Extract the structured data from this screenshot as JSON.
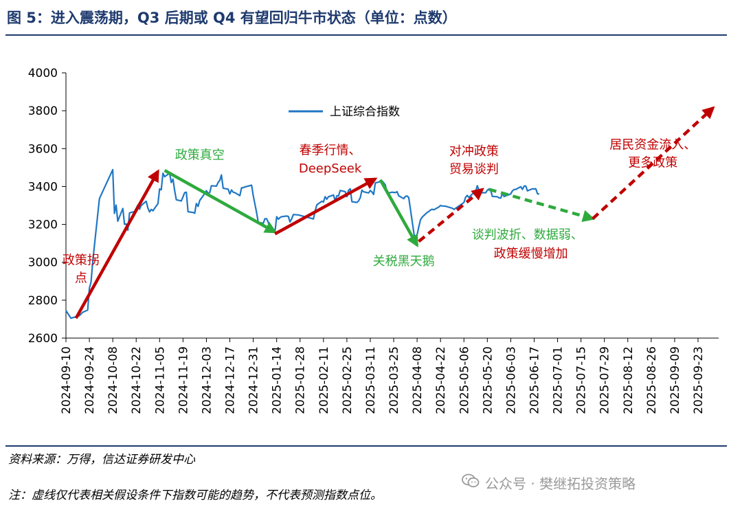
{
  "header": {
    "title": "图 5：进入震荡期，Q3 后期或 Q4 有望回归牛市状态（单位：点数）"
  },
  "footer": {
    "source": "资料来源：万得，信达证券研发中心",
    "note": "注：虚线仅代表相关假设条件下指数可能的趋势，不代表预测指数点位。",
    "watermark": "公众号 · 樊继拓投资策略",
    "watermark_icon": "wechat-icon"
  },
  "chart_data": {
    "type": "line",
    "title": "",
    "xlabel": "",
    "ylabel": "",
    "ylim": [
      2600,
      4000
    ],
    "yticks": [
      2600,
      2800,
      3000,
      3200,
      3400,
      3600,
      3800,
      4000
    ],
    "x_tick_labels": [
      "2024-09-10",
      "2024-09-24",
      "2024-10-08",
      "2024-10-22",
      "2024-11-05",
      "2024-11-19",
      "2024-12-03",
      "2024-12-17",
      "2024-12-31",
      "2025-01-14",
      "2025-01-28",
      "2025-02-11",
      "2025-02-25",
      "2025-03-11",
      "2025-03-25",
      "2025-04-08",
      "2025-04-22",
      "2025-05-06",
      "2025-05-20",
      "2025-06-03",
      "2025-06-17",
      "2025-07-01",
      "2025-07-15",
      "2025-07-29",
      "2025-08-12",
      "2025-08-26",
      "2025-09-09",
      "2025-09-23"
    ],
    "legend": {
      "label": "上证综合指数",
      "color": "#1f77c4",
      "position": "top-center"
    },
    "series": [
      {
        "name": "上证综合指数",
        "color": "#1f77c4",
        "points": [
          [
            "2024-09-10",
            2745
          ],
          [
            "2024-09-12",
            2718
          ],
          [
            "2024-09-13",
            2705
          ],
          [
            "2024-09-18",
            2718
          ],
          [
            "2024-09-20",
            2736
          ],
          [
            "2024-09-23",
            2748
          ],
          [
            "2024-09-24",
            2863
          ],
          [
            "2024-09-25",
            2896
          ],
          [
            "2024-09-26",
            3000
          ],
          [
            "2024-09-27",
            3087
          ],
          [
            "2024-09-30",
            3336
          ],
          [
            "2024-10-08",
            3489
          ],
          [
            "2024-10-09",
            3258
          ],
          [
            "2024-10-10",
            3302
          ],
          [
            "2024-10-11",
            3217
          ],
          [
            "2024-10-14",
            3284
          ],
          [
            "2024-10-15",
            3201
          ],
          [
            "2024-10-16",
            3202
          ],
          [
            "2024-10-17",
            3169
          ],
          [
            "2024-10-18",
            3261
          ],
          [
            "2024-10-21",
            3268
          ],
          [
            "2024-10-22",
            3285
          ],
          [
            "2024-10-23",
            3302
          ],
          [
            "2024-10-24",
            3280
          ],
          [
            "2024-10-25",
            3300
          ],
          [
            "2024-10-28",
            3322
          ],
          [
            "2024-10-29",
            3286
          ],
          [
            "2024-10-30",
            3266
          ],
          [
            "2024-10-31",
            3279
          ],
          [
            "2024-11-01",
            3272
          ],
          [
            "2024-11-04",
            3310
          ],
          [
            "2024-11-05",
            3387
          ],
          [
            "2024-11-06",
            3383
          ],
          [
            "2024-11-07",
            3470
          ],
          [
            "2024-11-08",
            3452
          ],
          [
            "2024-11-11",
            3470
          ],
          [
            "2024-11-12",
            3421
          ],
          [
            "2024-11-13",
            3439
          ],
          [
            "2024-11-14",
            3379
          ],
          [
            "2024-11-15",
            3330
          ],
          [
            "2024-11-18",
            3324
          ],
          [
            "2024-11-19",
            3346
          ],
          [
            "2024-11-20",
            3368
          ],
          [
            "2024-11-21",
            3370
          ],
          [
            "2024-11-22",
            3267
          ],
          [
            "2024-11-25",
            3263
          ],
          [
            "2024-11-26",
            3259
          ],
          [
            "2024-11-27",
            3310
          ],
          [
            "2024-11-28",
            3295
          ],
          [
            "2024-11-29",
            3326
          ],
          [
            "2024-12-02",
            3363
          ],
          [
            "2024-12-03",
            3378
          ],
          [
            "2024-12-04",
            3364
          ],
          [
            "2024-12-05",
            3368
          ],
          [
            "2024-12-06",
            3404
          ],
          [
            "2024-12-09",
            3402
          ],
          [
            "2024-12-10",
            3422
          ],
          [
            "2024-12-11",
            3432
          ],
          [
            "2024-12-12",
            3461
          ],
          [
            "2024-12-13",
            3391
          ],
          [
            "2024-12-16",
            3386
          ],
          [
            "2024-12-17",
            3361
          ],
          [
            "2024-12-18",
            3382
          ],
          [
            "2024-12-19",
            3370
          ],
          [
            "2024-12-20",
            3368
          ],
          [
            "2024-12-23",
            3352
          ],
          [
            "2024-12-24",
            3393
          ],
          [
            "2024-12-25",
            3394
          ],
          [
            "2024-12-26",
            3398
          ],
          [
            "2024-12-27",
            3400
          ],
          [
            "2024-12-30",
            3407
          ],
          [
            "2024-12-31",
            3352
          ],
          [
            "2025-01-02",
            3262
          ],
          [
            "2025-01-03",
            3211
          ],
          [
            "2025-01-06",
            3206
          ],
          [
            "2025-01-07",
            3230
          ],
          [
            "2025-01-08",
            3230
          ],
          [
            "2025-01-09",
            3211
          ],
          [
            "2025-01-10",
            3169
          ],
          [
            "2025-01-13",
            3160
          ],
          [
            "2025-01-14",
            3241
          ],
          [
            "2025-01-15",
            3227
          ],
          [
            "2025-01-16",
            3236
          ],
          [
            "2025-01-17",
            3241
          ],
          [
            "2025-01-20",
            3244
          ],
          [
            "2025-01-21",
            3242
          ],
          [
            "2025-01-22",
            3213
          ],
          [
            "2025-01-23",
            3230
          ],
          [
            "2025-01-24",
            3252
          ],
          [
            "2025-01-27",
            3250
          ],
          [
            "2025-02-05",
            3229
          ],
          [
            "2025-02-06",
            3270
          ],
          [
            "2025-02-07",
            3303
          ],
          [
            "2025-02-10",
            3322
          ],
          [
            "2025-02-11",
            3318
          ],
          [
            "2025-02-12",
            3346
          ],
          [
            "2025-02-13",
            3333
          ],
          [
            "2025-02-14",
            3346
          ],
          [
            "2025-02-17",
            3355
          ],
          [
            "2025-02-18",
            3324
          ],
          [
            "2025-02-19",
            3351
          ],
          [
            "2025-02-20",
            3350
          ],
          [
            "2025-02-21",
            3379
          ],
          [
            "2025-02-24",
            3373
          ],
          [
            "2025-02-25",
            3346
          ],
          [
            "2025-02-26",
            3380
          ],
          [
            "2025-02-27",
            3388
          ],
          [
            "2025-02-28",
            3320
          ],
          [
            "2025-03-03",
            3316
          ],
          [
            "2025-03-04",
            3324
          ],
          [
            "2025-03-05",
            3341
          ],
          [
            "2025-03-06",
            3381
          ],
          [
            "2025-03-07",
            3372
          ],
          [
            "2025-03-10",
            3366
          ],
          [
            "2025-03-11",
            3379
          ],
          [
            "2025-03-12",
            3371
          ],
          [
            "2025-03-13",
            3358
          ],
          [
            "2025-03-14",
            3419
          ],
          [
            "2025-03-17",
            3426
          ],
          [
            "2025-03-18",
            3429
          ],
          [
            "2025-03-19",
            3420
          ],
          [
            "2025-03-20",
            3408
          ],
          [
            "2025-03-21",
            3364
          ],
          [
            "2025-03-24",
            3370
          ],
          [
            "2025-03-25",
            3369
          ],
          [
            "2025-03-26",
            3368
          ],
          [
            "2025-03-27",
            3373
          ],
          [
            "2025-03-28",
            3351
          ],
          [
            "2025-03-31",
            3336
          ],
          [
            "2025-04-01",
            3348
          ],
          [
            "2025-04-02",
            3350
          ],
          [
            "2025-04-03",
            3342
          ],
          [
            "2025-04-07",
            3097
          ],
          [
            "2025-04-08",
            3145
          ],
          [
            "2025-04-09",
            3186
          ],
          [
            "2025-04-10",
            3224
          ],
          [
            "2025-04-11",
            3238
          ],
          [
            "2025-04-14",
            3263
          ],
          [
            "2025-04-15",
            3268
          ],
          [
            "2025-04-16",
            3276
          ],
          [
            "2025-04-17",
            3280
          ],
          [
            "2025-04-18",
            3277
          ],
          [
            "2025-04-21",
            3292
          ],
          [
            "2025-04-22",
            3300
          ],
          [
            "2025-04-23",
            3297
          ],
          [
            "2025-04-24",
            3297
          ],
          [
            "2025-04-25",
            3296
          ],
          [
            "2025-04-28",
            3288
          ],
          [
            "2025-04-29",
            3286
          ],
          [
            "2025-04-30",
            3279
          ],
          [
            "2025-05-06",
            3316
          ],
          [
            "2025-05-07",
            3343
          ],
          [
            "2025-05-08",
            3353
          ],
          [
            "2025-05-09",
            3342
          ],
          [
            "2025-05-12",
            3370
          ],
          [
            "2025-05-13",
            3374
          ],
          [
            "2025-05-14",
            3404
          ],
          [
            "2025-05-15",
            3380
          ],
          [
            "2025-05-16",
            3367
          ],
          [
            "2025-05-19",
            3367
          ],
          [
            "2025-05-20",
            3380
          ],
          [
            "2025-05-21",
            3387
          ],
          [
            "2025-05-22",
            3380
          ],
          [
            "2025-05-23",
            3348
          ],
          [
            "2025-05-26",
            3346
          ],
          [
            "2025-05-27",
            3340
          ],
          [
            "2025-05-28",
            3339
          ],
          [
            "2025-05-29",
            3363
          ],
          [
            "2025-05-30",
            3347
          ],
          [
            "2025-06-03",
            3361
          ],
          [
            "2025-06-04",
            3377
          ],
          [
            "2025-06-05",
            3384
          ],
          [
            "2025-06-06",
            3385
          ],
          [
            "2025-06-09",
            3399
          ],
          [
            "2025-06-10",
            3385
          ],
          [
            "2025-06-11",
            3402
          ],
          [
            "2025-06-12",
            3403
          ],
          [
            "2025-06-13",
            3377
          ],
          [
            "2025-06-16",
            3388
          ],
          [
            "2025-06-17",
            3387
          ],
          [
            "2025-06-18",
            3388
          ],
          [
            "2025-06-19",
            3362
          ],
          [
            "2025-06-20",
            3360
          ]
        ]
      }
    ],
    "trend_arrows": [
      {
        "from": [
          "2024-09-16",
          2705
        ],
        "to": [
          "2024-11-04",
          3480
        ],
        "color": "#c00000",
        "style": "solid"
      },
      {
        "from": [
          "2024-11-08",
          3485
        ],
        "to": [
          "2025-01-13",
          3160
        ],
        "color": "#2eaa3d",
        "style": "solid"
      },
      {
        "from": [
          "2025-01-13",
          3150
        ],
        "to": [
          "2025-03-14",
          3440
        ],
        "color": "#c00000",
        "style": "solid"
      },
      {
        "from": [
          "2025-03-17",
          3435
        ],
        "to": [
          "2025-04-08",
          3090
        ],
        "color": "#2eaa3d",
        "style": "solid"
      },
      {
        "from": [
          "2025-04-09",
          3110
        ],
        "to": [
          "2025-05-17",
          3385
        ],
        "color": "#c00000",
        "style": "dashed"
      },
      {
        "from": [
          "2025-05-21",
          3385
        ],
        "to": [
          "2025-07-22",
          3230
        ],
        "color": "#2eaa3d",
        "style": "dashed"
      },
      {
        "from": [
          "2025-07-22",
          3230
        ],
        "to": [
          "2025-10-02",
          3815
        ],
        "color": "#c00000",
        "style": "dashed"
      }
    ],
    "annotations": [
      {
        "lines": [
          "政策拐",
          "点"
        ],
        "color": "#c00000",
        "at": [
          "2024-09-19",
          2990
        ],
        "font": "serif"
      },
      {
        "lines": [
          "政策真空"
        ],
        "color": "#2eaa3d",
        "at": [
          "2024-11-29",
          3545
        ],
        "font": "serif"
      },
      {
        "lines": [
          "春季行情、"
        ],
        "color": "#c00000",
        "at": [
          "2025-02-15",
          3570
        ],
        "font": "serif"
      },
      {
        "lines": [
          "DeepSeek"
        ],
        "color": "#c00000",
        "at": [
          "2025-02-15",
          3475
        ],
        "font": "sans"
      },
      {
        "lines": [
          "关税黑天鹅"
        ],
        "color": "#2eaa3d",
        "at": [
          "2025-03-31",
          2985
        ],
        "font": "serif"
      },
      {
        "lines": [
          "对冲政策",
          "贸易谈判"
        ],
        "color": "#c00000",
        "at": [
          "2025-05-12",
          3565
        ],
        "font": "serif"
      },
      {
        "lines": [
          "谈判波折、数据弱、"
        ],
        "color": "#2eaa3d",
        "at": [
          "2025-06-13",
          3125
        ],
        "font": "serif"
      },
      {
        "lines": [
          "政策缓慢增加"
        ],
        "color": "#c00000",
        "at": [
          "2025-06-15",
          3025
        ],
        "font": "serif"
      },
      {
        "lines": [
          "居民资金流入、",
          "更多政策"
        ],
        "color": "#c00000",
        "at": [
          "2025-08-27",
          3600
        ],
        "font": "serif"
      }
    ]
  }
}
